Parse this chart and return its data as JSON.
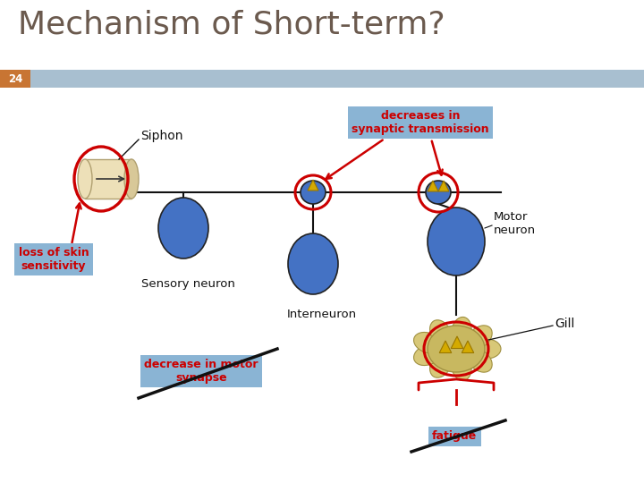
{
  "title": "Mechanism of Short-term?",
  "title_color": "#6b5a4e",
  "title_fontsize": 26,
  "slide_number": "24",
  "slide_num_bg": "#c87533",
  "slide_num_color": "white",
  "background_color": "white",
  "header_bar_color": "#a8bfd0",
  "labels": {
    "siphon": "Siphon",
    "sensory_neuron": "Sensory neuron",
    "interneuron": "Interneuron",
    "motor_neuron": "Motor\nneuron",
    "gill": "Gill",
    "decreases": "decreases in\nsynaptic transmission",
    "loss_skin": "loss of skin\nsensitivity",
    "decrease_motor": "decrease in motor\nsynapse",
    "fatigue": "fatigue"
  },
  "label_colors": {
    "decreases_bg": "#8ab4d4",
    "loss_skin_bg": "#8ab4d4",
    "decrease_motor_bg": "#8ab4d4",
    "fatigue_bg": "#8ab4d4",
    "decreases_text": "#cc0000",
    "loss_skin_text": "#cc0000",
    "decrease_motor_text": "#cc0000",
    "fatigue_text": "#cc0000"
  },
  "red_circle_color": "#cc0000",
  "neuron_fill": "#4472c4",
  "siphon_fill": "#ede0b8",
  "siphon_dark": "#d8c898",
  "gill_fill": "#d8c878",
  "gill_center": "#c8b860",
  "triangle_fill": "#d4aa00",
  "line_color": "#111111"
}
